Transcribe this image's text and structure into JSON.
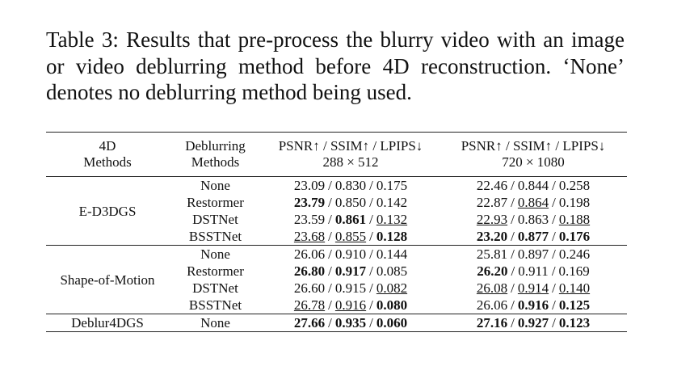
{
  "caption": {
    "label": "Table 3:",
    "text": "Results that pre-process the blurry video with an image or video deblurring method before 4D reconstruction. ‘None’ denotes no deblurring method being used."
  },
  "table": {
    "header": {
      "method": [
        "4D",
        "Methods"
      ],
      "deblur": [
        "Deblurring",
        "Methods"
      ],
      "metrics": [
        {
          "name": "PSNR↑ / SSIM↑ / LPIPS↓",
          "resolution": "288 × 512"
        },
        {
          "name": "PSNR↑ / SSIM↑ / LPIPS↓",
          "resolution": "720 × 1080"
        }
      ]
    },
    "separator": "/",
    "groups": [
      {
        "method": "E-D3DGS",
        "rows": [
          {
            "deblur": "None",
            "results": [
              [
                {
                  "value": "23.09"
                },
                {
                  "value": "0.830"
                },
                {
                  "value": "0.175"
                }
              ],
              [
                {
                  "value": "22.46"
                },
                {
                  "value": "0.844"
                },
                {
                  "value": "0.258"
                }
              ]
            ]
          },
          {
            "deblur": "Restormer",
            "results": [
              [
                {
                  "value": "23.79",
                  "bold": true
                },
                {
                  "value": "0.850"
                },
                {
                  "value": "0.142"
                }
              ],
              [
                {
                  "value": "22.87"
                },
                {
                  "value": "0.864",
                  "underline": true
                },
                {
                  "value": "0.198"
                }
              ]
            ]
          },
          {
            "deblur": "DSTNet",
            "results": [
              [
                {
                  "value": "23.59"
                },
                {
                  "value": "0.861",
                  "bold": true
                },
                {
                  "value": "0.132",
                  "underline": true
                }
              ],
              [
                {
                  "value": "22.93",
                  "underline": true
                },
                {
                  "value": "0.863"
                },
                {
                  "value": "0.188",
                  "underline": true
                }
              ]
            ]
          },
          {
            "deblur": "BSSTNet",
            "results": [
              [
                {
                  "value": "23.68",
                  "underline": true
                },
                {
                  "value": "0.855",
                  "underline": true
                },
                {
                  "value": "0.128",
                  "bold": true
                }
              ],
              [
                {
                  "value": "23.20",
                  "bold": true
                },
                {
                  "value": "0.877",
                  "bold": true
                },
                {
                  "value": "0.176",
                  "bold": true
                }
              ]
            ]
          }
        ]
      },
      {
        "method": "Shape-of-Motion",
        "rows": [
          {
            "deblur": "None",
            "results": [
              [
                {
                  "value": "26.06"
                },
                {
                  "value": "0.910"
                },
                {
                  "value": "0.144"
                }
              ],
              [
                {
                  "value": "25.81"
                },
                {
                  "value": "0.897"
                },
                {
                  "value": "0.246"
                }
              ]
            ]
          },
          {
            "deblur": "Restormer",
            "results": [
              [
                {
                  "value": "26.80",
                  "bold": true
                },
                {
                  "value": "0.917",
                  "bold": true
                },
                {
                  "value": "0.085"
                }
              ],
              [
                {
                  "value": "26.20",
                  "bold": true
                },
                {
                  "value": "0.911"
                },
                {
                  "value": "0.169"
                }
              ]
            ]
          },
          {
            "deblur": "DSTNet",
            "results": [
              [
                {
                  "value": "26.60"
                },
                {
                  "value": "0.915"
                },
                {
                  "value": "0.082",
                  "underline": true
                }
              ],
              [
                {
                  "value": "26.08",
                  "underline": true
                },
                {
                  "value": "0.914",
                  "underline": true
                },
                {
                  "value": "0.140",
                  "underline": true
                }
              ]
            ]
          },
          {
            "deblur": "BSSTNet",
            "results": [
              [
                {
                  "value": "26.78",
                  "underline": true
                },
                {
                  "value": "0.916",
                  "underline": true
                },
                {
                  "value": "0.080",
                  "bold": true
                }
              ],
              [
                {
                  "value": "26.06"
                },
                {
                  "value": "0.916",
                  "bold": true
                },
                {
                  "value": "0.125",
                  "bold": true
                }
              ]
            ]
          }
        ]
      },
      {
        "method": "Deblur4DGS",
        "rows": [
          {
            "deblur": "None",
            "results": [
              [
                {
                  "value": "27.66",
                  "bold": true
                },
                {
                  "value": "0.935",
                  "bold": true
                },
                {
                  "value": "0.060",
                  "bold": true
                }
              ],
              [
                {
                  "value": "27.16",
                  "bold": true
                },
                {
                  "value": "0.927",
                  "bold": true
                },
                {
                  "value": "0.123",
                  "bold": true
                }
              ]
            ]
          }
        ]
      }
    ]
  }
}
